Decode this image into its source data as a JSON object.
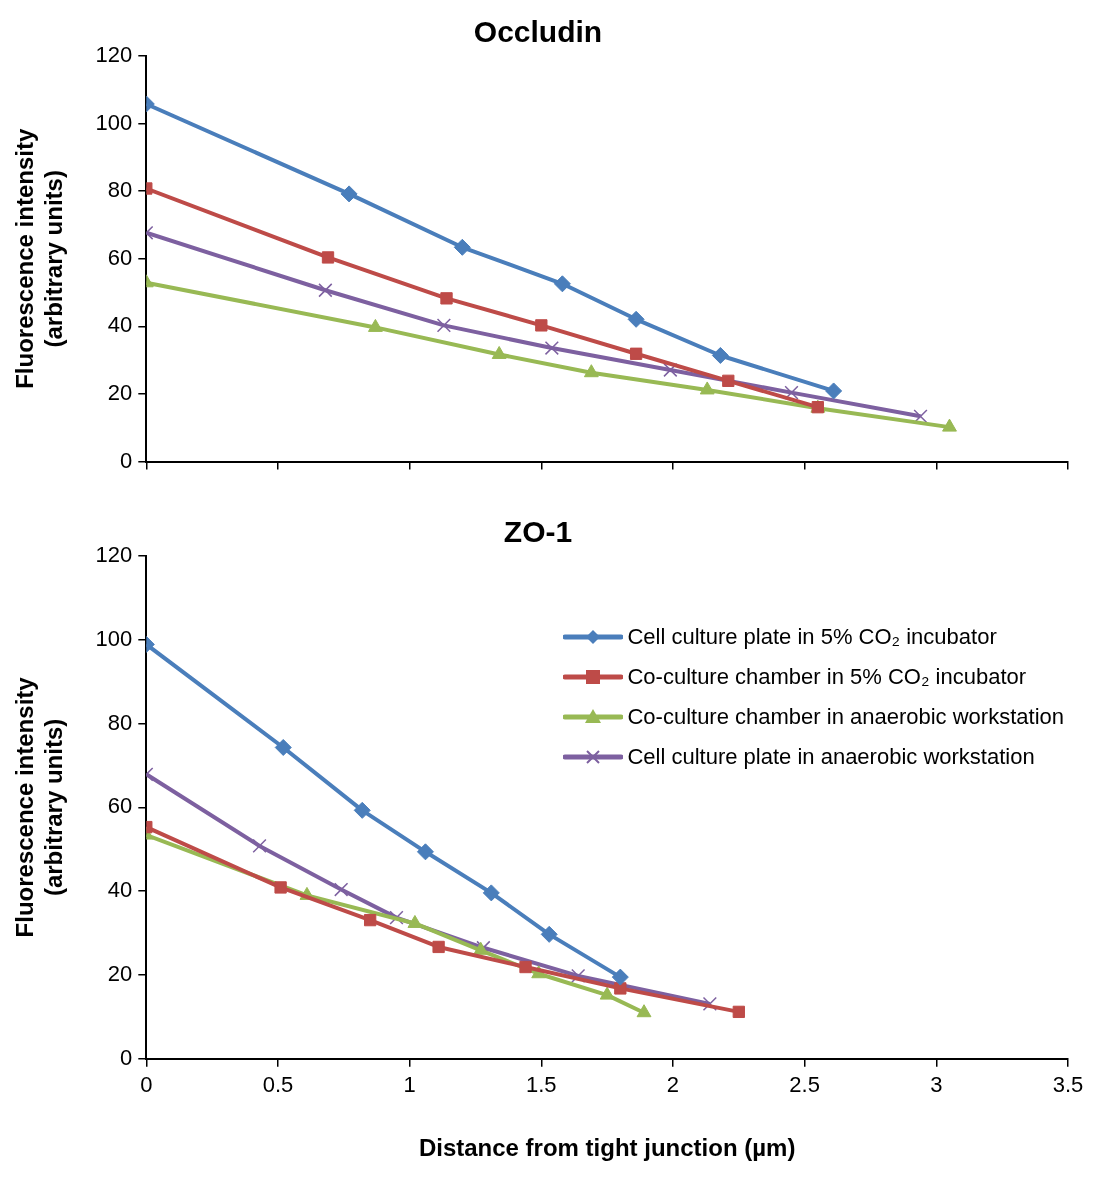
{
  "chart_data": [
    {
      "type": "line",
      "title": "Occludin",
      "ylabel": "Fluorescence intensity\n(arbitrary units)",
      "xlim": [
        0,
        3.5
      ],
      "xticks": [
        0,
        0.5,
        1,
        1.5,
        2,
        2.5,
        3,
        3.5
      ],
      "ylim": [
        0,
        120
      ],
      "yticks": [
        0,
        20,
        40,
        60,
        80,
        100,
        120
      ],
      "tick_labels": "y",
      "grid": false,
      "legend": false,
      "line_style": "solid",
      "series": [
        {
          "color": "#4a7ebb",
          "marker": "diamond",
          "x": [
            0,
            0.77,
            1.2,
            1.58,
            1.86,
            2.18,
            2.61
          ],
          "values": [
            105.8,
            79.2,
            63.4,
            52.6,
            42.1,
            31.4,
            20.9
          ]
        },
        {
          "color": "#be4b48",
          "marker": "square",
          "x": [
            0,
            0.69,
            1.14,
            1.5,
            1.86,
            2.21,
            2.55
          ],
          "values": [
            80.8,
            60.4,
            48.3,
            40.3,
            31.9,
            23.9,
            16.1
          ]
        },
        {
          "color": "#98b954",
          "marker": "triangle",
          "x": [
            0,
            0.87,
            1.34,
            1.69,
            2.13,
            2.55,
            3.05
          ],
          "values": [
            52.9,
            39.7,
            31.7,
            26.3,
            21.2,
            15.8,
            10.2
          ]
        },
        {
          "color": "#7d60a0",
          "marker": "cross",
          "x": [
            0,
            0.68,
            1.13,
            1.54,
            1.99,
            2.45,
            2.94
          ],
          "values": [
            67.7,
            50.7,
            40.3,
            33.6,
            27.1,
            20.4,
            13.4
          ]
        }
      ]
    },
    {
      "type": "line",
      "title": "ZO-1",
      "xlabel": "Distance from tight junction (µm)",
      "ylabel": "Fluorescence intensity\n(arbitrary units)",
      "xlim": [
        0,
        3.5
      ],
      "xticks": [
        0,
        0.5,
        1,
        1.5,
        2,
        2.5,
        3,
        3.5
      ],
      "ylim": [
        0,
        120
      ],
      "yticks": [
        0,
        20,
        40,
        60,
        80,
        100,
        120
      ],
      "grid": false,
      "legend": "top right",
      "line_style": "solid",
      "series": [
        {
          "name": "Cell culture plate in 5% CO₂ incubator",
          "color": "#4a7ebb",
          "marker": "diamond",
          "x": [
            0,
            0.52,
            0.82,
            1.06,
            1.31,
            1.53,
            1.8
          ],
          "values": [
            98.9,
            74.3,
            59.3,
            49.4,
            39.6,
            29.7,
            19.5
          ]
        },
        {
          "name": "Co-culture chamber in 5% CO₂ incubator",
          "color": "#be4b48",
          "marker": "square",
          "x": [
            0,
            0.51,
            0.85,
            1.11,
            1.44,
            1.8,
            2.25
          ],
          "values": [
            55.3,
            40.9,
            33.1,
            26.7,
            21.9,
            16.8,
            11.2
          ]
        },
        {
          "name": "Co-culture chamber in anaerobic workstation",
          "color": "#98b954",
          "marker": "triangle",
          "x": [
            0,
            0.61,
            1.02,
            1.27,
            1.49,
            1.75,
            1.89
          ],
          "values": [
            53.4,
            39.0,
            32.3,
            25.9,
            20.3,
            15.2,
            11.0
          ]
        },
        {
          "name": "Cell culture plate in anaerobic workstation",
          "color": "#7d60a0",
          "marker": "cross",
          "x": [
            0,
            0.43,
            0.74,
            0.95,
            1.28,
            1.64,
            2.14
          ],
          "values": [
            67.9,
            50.8,
            40.4,
            33.7,
            26.5,
            19.8,
            13.1
          ]
        }
      ]
    }
  ]
}
